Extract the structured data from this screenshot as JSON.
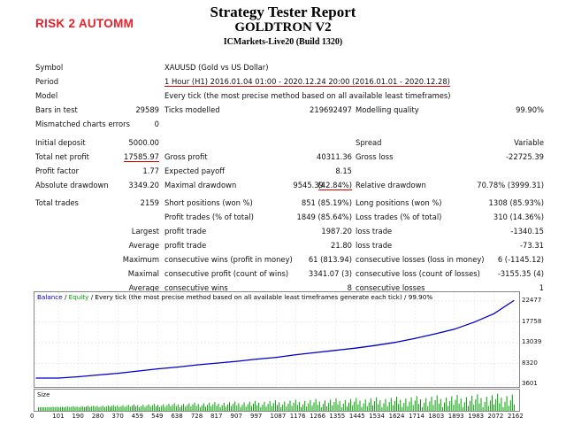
{
  "brand": "RISK 2 AUTOMM",
  "header": {
    "title": "Strategy Tester Report",
    "ea_name": "GOLDTRON V2",
    "server": "ICMarkets-Live20 (Build 1320)"
  },
  "report": {
    "symbol_label": "Symbol",
    "symbol_value": "XAUUSD (Gold vs US Dollar)",
    "period_label": "Period",
    "period_value": "1 Hour (H1) 2016.01.04 01:00 - 2020.12.24 20:00 (2016.01.01 - 2020.12.28)",
    "model_label": "Model",
    "model_value": "Every tick (the most precise method based on all available least timeframes)",
    "bars_label": "Bars in test",
    "bars_value": "29589",
    "ticks_label": "Ticks modelled",
    "ticks_value": "219692497",
    "quality_label": "Modelling quality",
    "quality_value": "99.90%",
    "mismatch_label": "Mismatched charts errors",
    "mismatch_value": "0",
    "deposit_label": "Initial deposit",
    "deposit_value": "5000.00",
    "spread_label": "Spread",
    "spread_value": "Variable",
    "netprofit_label": "Total net profit",
    "netprofit_value": "17585.97",
    "grossprofit_label": "Gross profit",
    "grossprofit_value": "40311.36",
    "grossloss_label": "Gross loss",
    "grossloss_value": "-22725.39",
    "pf_label": "Profit factor",
    "pf_value": "1.77",
    "payoff_label": "Expected payoff",
    "payoff_value": "8.15",
    "absdd_label": "Absolute drawdown",
    "absdd_value": "3349.20",
    "maxdd_label": "Maximal drawdown",
    "maxdd_value": "9545.39",
    "maxdd_pct": "(42.84%)",
    "reldd_label": "Relative drawdown",
    "reldd_value": "70.78% (3999.31)",
    "trades_label": "Total trades",
    "trades_value": "2159",
    "short_label": "Short positions (won %)",
    "short_value": "851 (85.19%)",
    "long_label": "Long positions (won %)",
    "long_value": "1308 (85.93%)",
    "ptrades_label": "Profit trades (% of total)",
    "ptrades_value": "1849 (85.64%)",
    "ltrades_label": "Loss trades (% of total)",
    "ltrades_value": "310 (14.36%)",
    "largest_label": "Largest",
    "largest_profit_label": "profit trade",
    "largest_profit_value": "1987.20",
    "largest_loss_label": "loss trade",
    "largest_loss_value": "-1340.15",
    "average_label": "Average",
    "average_profit_label": "profit trade",
    "average_profit_value": "21.80",
    "average_loss_label": "loss trade",
    "average_loss_value": "-73.31",
    "maximum_label": "Maximum",
    "max_wins_label": "consecutive wins (profit in money)",
    "max_wins_value": "61 (813.94)",
    "max_losses_label": "consecutive losses (loss in money)",
    "max_losses_value": "6 (-1145.12)",
    "maximal_label": "Maximal",
    "maximal_profit_label": "consecutive profit (count of wins)",
    "maximal_profit_value": "3341.07 (3)",
    "maximal_loss_label": "consecutive loss (count of losses)",
    "maximal_loss_value": "-3155.35 (4)",
    "average2_label": "Average",
    "avg_wins_label": "consecutive wins",
    "avg_wins_value": "8",
    "avg_losses_label": "consecutive losses",
    "avg_losses_value": "1"
  },
  "legend": {
    "balance": "Balance",
    "sep": " / ",
    "equity": "Equity",
    "rest": " / Every tick (the most precise method based on all available least timeframes generate each tick) / 99.90%"
  },
  "size_label": "Size",
  "colors": {
    "balance": "#0000c8",
    "equity": "#00a000",
    "accent": "#e8202a"
  },
  "chart_data": {
    "type": "line",
    "title": "",
    "series": [
      {
        "name": "Balance",
        "x": [
          0,
          101,
          190,
          280,
          370,
          459,
          549,
          638,
          728,
          817,
          907,
          997,
          1087,
          1176,
          1266,
          1355,
          1445,
          1534,
          1624,
          1714,
          1803,
          1893,
          1983,
          2072,
          2162
        ],
        "values": [
          5000,
          5000,
          5300,
          5700,
          6100,
          6600,
          7100,
          7500,
          8000,
          8400,
          8800,
          9300,
          9700,
          10300,
          10800,
          11300,
          11800,
          12400,
          13100,
          14000,
          15000,
          16100,
          17700,
          19600,
          22585
        ]
      },
      {
        "name": "Equity",
        "x": [],
        "values": []
      }
    ],
    "y_ticks": [
      "22477",
      "17758",
      "13039",
      "8320",
      "3601"
    ],
    "x_ticks": [
      "0",
      "101",
      "190",
      "280",
      "370",
      "459",
      "549",
      "638",
      "728",
      "817",
      "907",
      "997",
      "1087",
      "1176",
      "1266",
      "1355",
      "1445",
      "1534",
      "1624",
      "1714",
      "1803",
      "1893",
      "1983",
      "2072",
      "2162"
    ],
    "ylim": [
      3601,
      22477
    ],
    "xlim": [
      0,
      2162
    ],
    "grid": true
  }
}
